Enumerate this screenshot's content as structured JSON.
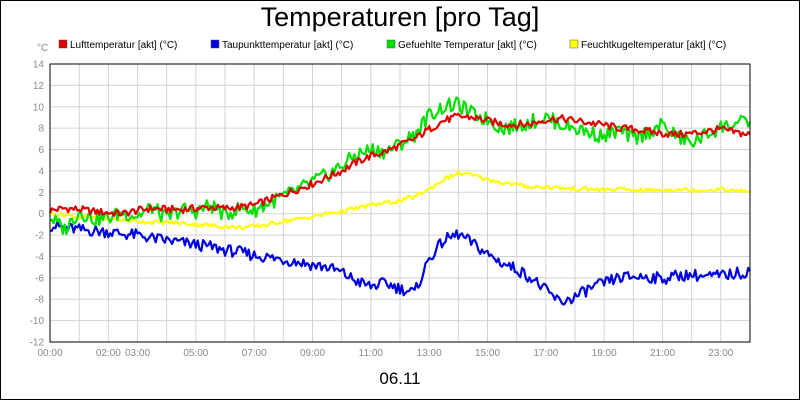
{
  "chart_data": {
    "type": "line",
    "title": "Temperaturen [pro Tag]",
    "ylabel": "°C",
    "xlabel": "06.11",
    "ylim": [
      -12,
      14
    ],
    "yticks": [
      14,
      12,
      10,
      8,
      6,
      4,
      2,
      0,
      -2,
      -4,
      -6,
      -8,
      -10,
      -12
    ],
    "xlim": [
      0,
      24
    ],
    "xticks": [
      {
        "h": 0,
        "label": "00:00"
      },
      {
        "h": 2,
        "label": "02:00"
      },
      {
        "h": 3,
        "label": "03:00"
      },
      {
        "h": 5,
        "label": "05:00"
      },
      {
        "h": 7,
        "label": "07:00"
      },
      {
        "h": 9,
        "label": "09:00"
      },
      {
        "h": 11,
        "label": "11:00"
      },
      {
        "h": 13,
        "label": "13:00"
      },
      {
        "h": 15,
        "label": "15:00"
      },
      {
        "h": 17,
        "label": "17:00"
      },
      {
        "h": 19,
        "label": "19:00"
      },
      {
        "h": 21,
        "label": "21:00"
      },
      {
        "h": 23,
        "label": "23:00"
      }
    ],
    "series": [
      {
        "name": "Lufttemperatur [akt] (°C)",
        "color": "#e00000",
        "x": [
          0,
          0.5,
          1,
          1.5,
          2,
          2.5,
          3,
          3.5,
          4,
          4.5,
          5,
          5.5,
          6,
          6.5,
          7,
          7.5,
          8,
          8.5,
          9,
          9.5,
          10,
          10.5,
          11,
          11.5,
          12,
          12.5,
          13,
          13.5,
          14,
          14.5,
          15,
          15.5,
          16,
          16.5,
          17,
          17.5,
          18,
          18.5,
          19,
          19.5,
          20,
          20.5,
          21,
          21.5,
          22,
          22.5,
          23,
          23.5,
          24
        ],
        "values": [
          0.3,
          0.5,
          0.4,
          0.2,
          0.1,
          0.0,
          0.3,
          0.5,
          0.4,
          0.4,
          0.5,
          0.6,
          0.5,
          0.6,
          0.8,
          1.3,
          1.8,
          2.3,
          2.8,
          3.4,
          4.0,
          4.8,
          5.4,
          5.8,
          6.4,
          7.0,
          7.9,
          8.7,
          9.1,
          9.0,
          8.7,
          8.4,
          8.3,
          8.4,
          8.8,
          8.9,
          8.7,
          8.5,
          8.3,
          8.0,
          7.9,
          7.7,
          7.5,
          7.4,
          7.5,
          7.7,
          7.9,
          7.6,
          7.4
        ]
      },
      {
        "name": "Taupunkttemperatur [akt] (°C)",
        "color": "#0000e0",
        "x": [
          0,
          0.5,
          1,
          1.5,
          2,
          2.5,
          3,
          3.5,
          4,
          4.5,
          5,
          5.5,
          6,
          6.5,
          7,
          7.5,
          8,
          8.5,
          9,
          9.5,
          10,
          10.5,
          11,
          11.5,
          12,
          12.5,
          13,
          13.5,
          14,
          14.5,
          15,
          15.5,
          16,
          16.5,
          17,
          17.5,
          18,
          18.5,
          19,
          19.5,
          20,
          20.5,
          21,
          21.5,
          22,
          22.5,
          23,
          23.5,
          24
        ],
        "values": [
          -1.1,
          -1.3,
          -1.5,
          -1.6,
          -1.7,
          -1.9,
          -2.0,
          -2.3,
          -2.5,
          -2.7,
          -2.9,
          -3.1,
          -3.4,
          -3.6,
          -3.9,
          -4.1,
          -4.3,
          -4.5,
          -4.8,
          -5.0,
          -5.5,
          -6.3,
          -6.8,
          -6.5,
          -7.0,
          -7.4,
          -4.2,
          -2.5,
          -1.9,
          -2.8,
          -3.8,
          -4.6,
          -5.2,
          -6.0,
          -7.2,
          -8.3,
          -7.8,
          -7.0,
          -6.5,
          -6.0,
          -5.9,
          -5.9,
          -6.1,
          -5.8,
          -5.7,
          -5.9,
          -5.8,
          -5.6,
          -5.4
        ]
      },
      {
        "name": "Gefuehlte Temperatur [akt] (°C)",
        "color": "#00e000",
        "x": [
          0,
          0.5,
          1,
          1.5,
          2,
          2.5,
          3,
          3.5,
          4,
          4.5,
          5,
          5.5,
          6,
          6.5,
          7,
          7.5,
          8,
          8.5,
          9,
          9.5,
          10,
          10.5,
          11,
          11.5,
          12,
          12.5,
          13,
          13.5,
          14,
          14.5,
          15,
          15.5,
          16,
          16.5,
          17,
          17.5,
          18,
          18.5,
          19,
          19.5,
          20,
          20.5,
          21,
          21.5,
          22,
          22.5,
          23,
          23.5,
          24
        ],
        "values": [
          -0.3,
          -1.5,
          0.2,
          -0.5,
          -0.4,
          0.1,
          -0.2,
          0.6,
          -0.5,
          0.4,
          0.2,
          0.8,
          -0.1,
          0.5,
          0.3,
          1.0,
          1.6,
          2.2,
          3.0,
          3.6,
          4.5,
          5.5,
          6.0,
          5.8,
          6.5,
          7.4,
          9.2,
          10.0,
          10.2,
          9.3,
          8.8,
          8.0,
          8.2,
          8.6,
          9.0,
          8.4,
          8.0,
          7.6,
          7.2,
          7.8,
          7.0,
          7.6,
          8.3,
          7.2,
          6.6,
          7.4,
          8.1,
          8.4,
          8.6
        ]
      },
      {
        "name": "Feuchtkugeltemperatur [akt] (°C)",
        "color": "#ffff00",
        "x": [
          0,
          0.5,
          1,
          1.5,
          2,
          2.5,
          3,
          3.5,
          4,
          4.5,
          5,
          5.5,
          6,
          6.5,
          7,
          7.5,
          8,
          8.5,
          9,
          9.5,
          10,
          10.5,
          11,
          11.5,
          12,
          12.5,
          13,
          13.5,
          14,
          14.5,
          15,
          15.5,
          16,
          16.5,
          17,
          17.5,
          18,
          18.5,
          19,
          19.5,
          20,
          20.5,
          21,
          21.5,
          22,
          22.5,
          23,
          23.5,
          24
        ],
        "values": [
          0.0,
          -0.1,
          -0.3,
          -0.4,
          -0.5,
          -0.6,
          -0.7,
          -0.8,
          -0.8,
          -0.9,
          -1.0,
          -1.1,
          -1.2,
          -1.3,
          -1.2,
          -1.0,
          -0.7,
          -0.5,
          -0.3,
          0.0,
          0.2,
          0.5,
          0.8,
          1.0,
          1.2,
          1.6,
          2.3,
          3.2,
          3.8,
          3.6,
          3.2,
          2.9,
          2.7,
          2.5,
          2.5,
          2.4,
          2.3,
          2.3,
          2.2,
          2.3,
          2.2,
          2.2,
          2.2,
          2.3,
          2.2,
          2.2,
          2.3,
          2.1,
          2.1
        ]
      }
    ]
  }
}
